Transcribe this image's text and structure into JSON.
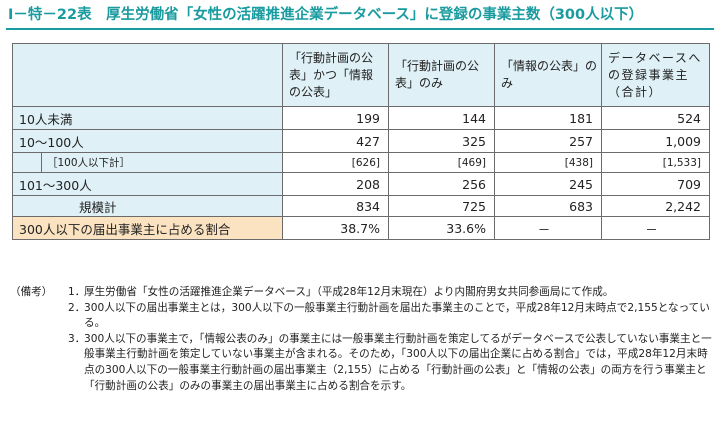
{
  "title": "Ⅰ－特－22表　厚生労働省「女性の活躍推進企業データベース」に登録の事業主数（300人以下）",
  "table": {
    "headers": [
      "「行動計画の公表」かつ「情報の公表」",
      "「行動計画の公表」のみ",
      "「情報の公表」のみ",
      "データベースへの登録事業主（合計）"
    ],
    "rows": [
      {
        "label": "10人未満",
        "values": [
          "199",
          "144",
          "181",
          "524"
        ]
      },
      {
        "label": "10～100人",
        "values": [
          "427",
          "325",
          "257",
          "1,009"
        ]
      },
      {
        "label": "［100人以下計］",
        "values": [
          "[626]",
          "[469]",
          "[438]",
          "[1,533]"
        ]
      },
      {
        "label": "101～300人",
        "values": [
          "208",
          "256",
          "245",
          "709"
        ]
      },
      {
        "label": "規模計",
        "values": [
          "834",
          "725",
          "683",
          "2,242"
        ]
      },
      {
        "label": "300人以下の届出事業主に占める割合",
        "values": [
          "38.7%",
          "33.6%",
          "－",
          "－"
        ]
      }
    ]
  },
  "notes": {
    "head": "（備考）",
    "items": [
      {
        "num": "1．",
        "text": "厚生労働省「女性の活躍推進企業データベース」（平成28年12月末現在）より内閣府男女共同参画局にて作成。"
      },
      {
        "num": "2．",
        "text": "300人以下の届出事業主とは，300人以下の一般事業主行動計画を届出た事業主のことで，平成28年12月末時点で2,155となっている。"
      },
      {
        "num": "3．",
        "text": "300人以下の事業主で，「情報公表のみ」の事業主には一般事業主行動計画を策定してるがデータベースで公表していない事業主と一般事業主行動計画を策定していない事業主が含まれる。そのため，「300人以下の届出企業に占める割合」では，平成28年12月末時点の300人以下の一般事業主行動計画の届出事業主（2,155）に占める「行動計画の公表」と「情報の公表」の両方を行う事業主と「行動計画の公表」のみの事業主の届出事業主に占める割合を示す。"
      }
    ]
  }
}
